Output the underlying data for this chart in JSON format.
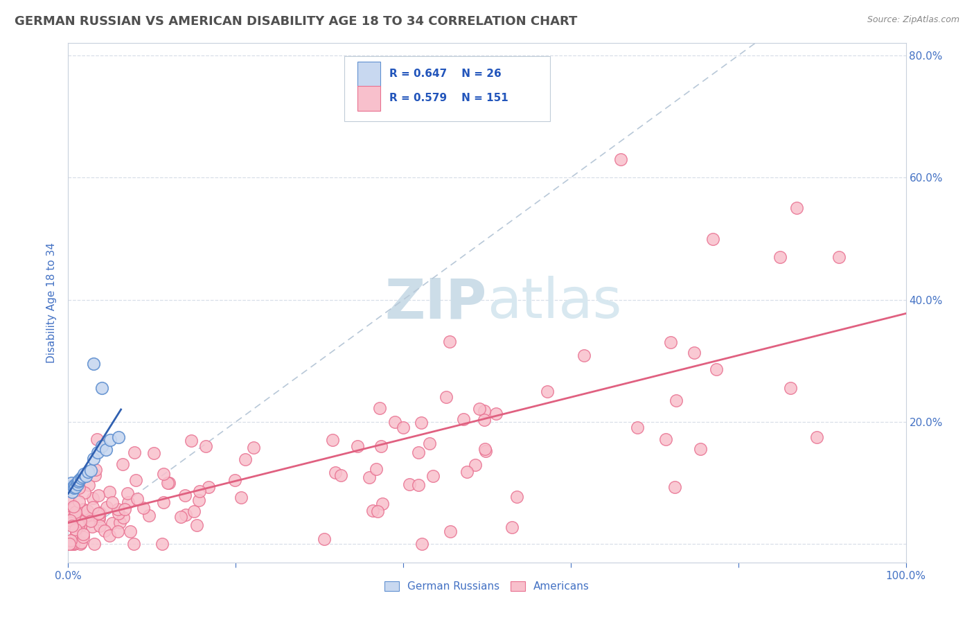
{
  "title": "GERMAN RUSSIAN VS AMERICAN DISABILITY AGE 18 TO 34 CORRELATION CHART",
  "source_text": "Source: ZipAtlas.com",
  "ylabel": "Disability Age 18 to 34",
  "xmin": 0.0,
  "xmax": 1.0,
  "ymin": -0.03,
  "ymax": 0.82,
  "xtick_positions": [
    0.0,
    0.2,
    0.4,
    0.6,
    0.8,
    1.0
  ],
  "xticklabels": [
    "0.0%",
    "",
    "",
    "",
    "",
    "100.0%"
  ],
  "ytick_positions": [
    0.0,
    0.2,
    0.4,
    0.6,
    0.8
  ],
  "yticklabels_right": [
    "",
    "20.0%",
    "40.0%",
    "60.0%",
    "80.0%"
  ],
  "legend_r1": "R = 0.647",
  "legend_n1": "N = 26",
  "legend_r2": "R = 0.579",
  "legend_n2": "N = 151",
  "german_russian_fill": "#c8d8f0",
  "german_russian_edge": "#6090d0",
  "american_fill": "#f8c0cc",
  "american_edge": "#e87090",
  "german_russian_line_color": "#3060b0",
  "american_line_color": "#e06080",
  "diag_line_color": "#b8c8d8",
  "watermark_color": "#ccdde8",
  "background_color": "#ffffff",
  "title_color": "#505050",
  "title_fontsize": 13,
  "tick_color": "#4472c4",
  "grid_color": "#d8dfe8",
  "legend_text_color": "#2255bb"
}
